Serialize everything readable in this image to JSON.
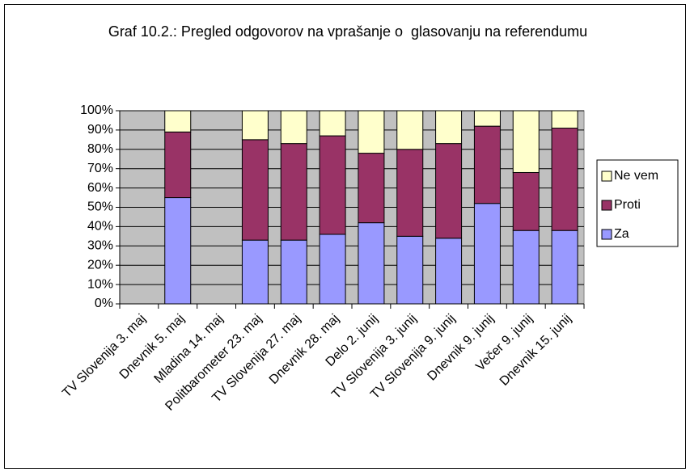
{
  "chart_data": {
    "type": "stacked_bar",
    "title": "Graf 10.2.: Pregled odgovorov na vprašanje o  glasovanju na referendumu",
    "categories": [
      "TV Slovenija 3. maj",
      "Dnevnik 5. maj",
      "Mladina 14. maj",
      "Politbarometer 23. maj",
      "TV Slovenija 27. maj",
      "Dnevnik 28. maj",
      "Delo 2. junij",
      "TV Slovenija 3. junij",
      "TV Slovenija 9. junij",
      "Dnevnik 9. junij",
      "Večer 9. junij",
      "Dnevnik 15. junij"
    ],
    "series": [
      {
        "name": "Za",
        "color": "#9999ff",
        "values": [
          null,
          55,
          null,
          33,
          33,
          36,
          42,
          35,
          34,
          52,
          38,
          38
        ]
      },
      {
        "name": "Proti",
        "color": "#993366",
        "values": [
          null,
          34,
          null,
          52,
          50,
          51,
          36,
          45,
          49,
          40,
          30,
          53
        ]
      },
      {
        "name": "Ne vem",
        "color": "#ffffcc",
        "values": [
          null,
          11,
          null,
          15,
          17,
          13,
          22,
          20,
          17,
          8,
          32,
          9
        ]
      }
    ],
    "ylim": [
      0,
      100
    ],
    "yticks": [
      {
        "value": 0,
        "label": "0%"
      },
      {
        "value": 10,
        "label": "10%"
      },
      {
        "value": 20,
        "label": "20%"
      },
      {
        "value": 30,
        "label": "30%"
      },
      {
        "value": 40,
        "label": "40%"
      },
      {
        "value": 50,
        "label": "50%"
      },
      {
        "value": 60,
        "label": "60%"
      },
      {
        "value": 70,
        "label": "70%"
      },
      {
        "value": 80,
        "label": "80%"
      },
      {
        "value": 90,
        "label": "90%"
      },
      {
        "value": 100,
        "label": "100%"
      }
    ],
    "grid": true,
    "legend": "right",
    "plot_background": "#c0c0c0"
  }
}
